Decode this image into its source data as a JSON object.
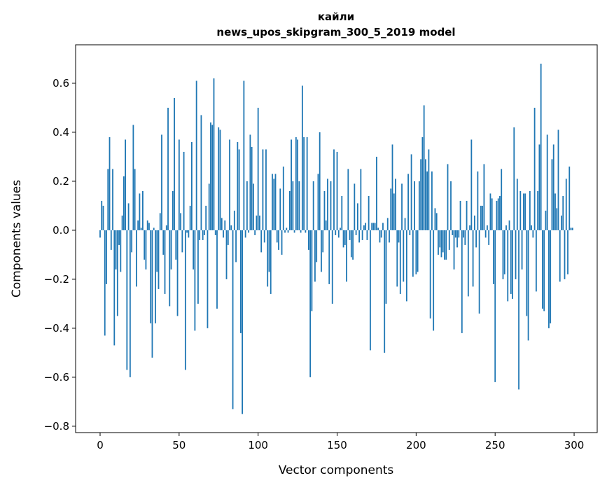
{
  "chart_data": {
    "type": "bar",
    "title": "кайли",
    "subtitle": "news_upos_skipgram_300_5_2019 model",
    "xlabel": "Vector components",
    "ylabel": "Components values",
    "xlim": [
      -15.5,
      314.6
    ],
    "ylim": [
      -0.826,
      0.757
    ],
    "xticks": [
      0,
      50,
      100,
      150,
      200,
      250,
      300
    ],
    "yticks": [
      -0.8,
      -0.6,
      -0.4,
      -0.2,
      0.0,
      0.2,
      0.4,
      0.6
    ],
    "ytick_labels": [
      "−0.8",
      "−0.6",
      "−0.4",
      "−0.2",
      "0.0",
      "0.2",
      "0.4",
      "0.6"
    ],
    "grid": false,
    "color": "#1f77b4",
    "values": [
      -0.03,
      0.12,
      0.1,
      -0.43,
      -0.22,
      0.25,
      0.38,
      -0.08,
      0.25,
      -0.47,
      -0.16,
      -0.35,
      -0.06,
      -0.17,
      0.06,
      0.22,
      0.37,
      -0.57,
      0.11,
      -0.6,
      -0.09,
      0.43,
      0.25,
      -0.23,
      0.04,
      0.15,
      0.01,
      0.16,
      -0.12,
      -0.16,
      0.04,
      0.03,
      -0.38,
      -0.52,
      0.01,
      -0.38,
      -0.17,
      -0.24,
      0.07,
      0.39,
      -0.1,
      -0.26,
      0.02,
      0.5,
      -0.31,
      -0.16,
      0.16,
      0.54,
      -0.12,
      -0.35,
      0.37,
      0.07,
      -0.09,
      0.32,
      -0.57,
      -0.01,
      -0.03,
      0.1,
      0.36,
      -0.16,
      -0.41,
      0.61,
      -0.3,
      -0.04,
      0.47,
      -0.04,
      -0.02,
      0.1,
      -0.4,
      0.19,
      0.44,
      0.43,
      0.62,
      -0.02,
      -0.32,
      0.42,
      0.41,
      0.05,
      -0.03,
      0.04,
      -0.2,
      -0.06,
      0.37,
      0.02,
      -0.73,
      0.08,
      -0.13,
      0.36,
      0.33,
      -0.42,
      -0.75,
      0.61,
      -0.03,
      0.2,
      -0.01,
      0.39,
      0.34,
      0.19,
      -0.02,
      0.06,
      0.5,
      0.06,
      -0.09,
      0.33,
      -0.05,
      0.33,
      -0.23,
      -0.17,
      -0.26,
      0.23,
      0.21,
      0.23,
      -0.05,
      -0.08,
      0.17,
      -0.1,
      0.26,
      -0.01,
      0.01,
      -0.01,
      0.16,
      0.37,
      0.2,
      -0.01,
      0.38,
      0.37,
      0.2,
      -0.01,
      0.59,
      0.38,
      -0.01,
      0.38,
      -0.08,
      -0.6,
      -0.33,
      0.2,
      -0.21,
      -0.13,
      0.23,
      0.4,
      -0.17,
      -0.09,
      0.16,
      0.04,
      0.21,
      -0.22,
      0.2,
      -0.3,
      0.33,
      -0.02,
      0.32,
      -0.03,
      0.01,
      0.14,
      -0.07,
      -0.06,
      -0.21,
      0.25,
      -0.04,
      -0.11,
      -0.12,
      0.19,
      -0.02,
      0.11,
      -0.05,
      0.25,
      -0.04,
      0.02,
      0.03,
      -0.04,
      0.14,
      -0.49,
      0.03,
      0.03,
      0.03,
      0.3,
      0.01,
      -0.05,
      -0.03,
      0.03,
      -0.5,
      -0.3,
      0.05,
      -0.05,
      0.17,
      0.35,
      0.15,
      0.21,
      -0.23,
      -0.05,
      -0.26,
      0.19,
      -0.21,
      0.05,
      -0.29,
      0.23,
      -0.02,
      0.31,
      -0.19,
      0.2,
      -0.18,
      -0.17,
      0.2,
      0.29,
      0.38,
      0.51,
      0.29,
      0.24,
      0.33,
      -0.36,
      0.24,
      -0.41,
      0.09,
      0.07,
      -0.1,
      -0.07,
      -0.11,
      -0.09,
      -0.12,
      -0.12,
      0.27,
      -0.08,
      0.2,
      -0.02,
      -0.16,
      -0.03,
      -0.07,
      -0.03,
      0.12,
      -0.42,
      -0.03,
      -0.06,
      0.12,
      -0.27,
      0.02,
      0.37,
      -0.23,
      0.06,
      -0.07,
      0.24,
      -0.34,
      0.1,
      0.1,
      0.27,
      -0.03,
      0.02,
      -0.06,
      0.15,
      0.13,
      -0.22,
      -0.62,
      0.12,
      0.13,
      0.14,
      0.25,
      -0.2,
      -0.18,
      0.02,
      -0.29,
      0.04,
      -0.26,
      -0.28,
      0.42,
      -0.2,
      0.21,
      -0.65,
      0.16,
      -0.16,
      0.15,
      0.15,
      -0.35,
      -0.45,
      0.16,
      0.02,
      -0.03,
      0.5,
      -0.25,
      0.16,
      0.35,
      0.68,
      -0.32,
      -0.33,
      0.08,
      0.39,
      -0.4,
      -0.38,
      0.29,
      0.35,
      0.15,
      0.09,
      0.41,
      -0.21,
      0.06,
      0.14,
      -0.2,
      0.21,
      -0.18,
      0.26,
      0.01,
      0.01
    ]
  }
}
